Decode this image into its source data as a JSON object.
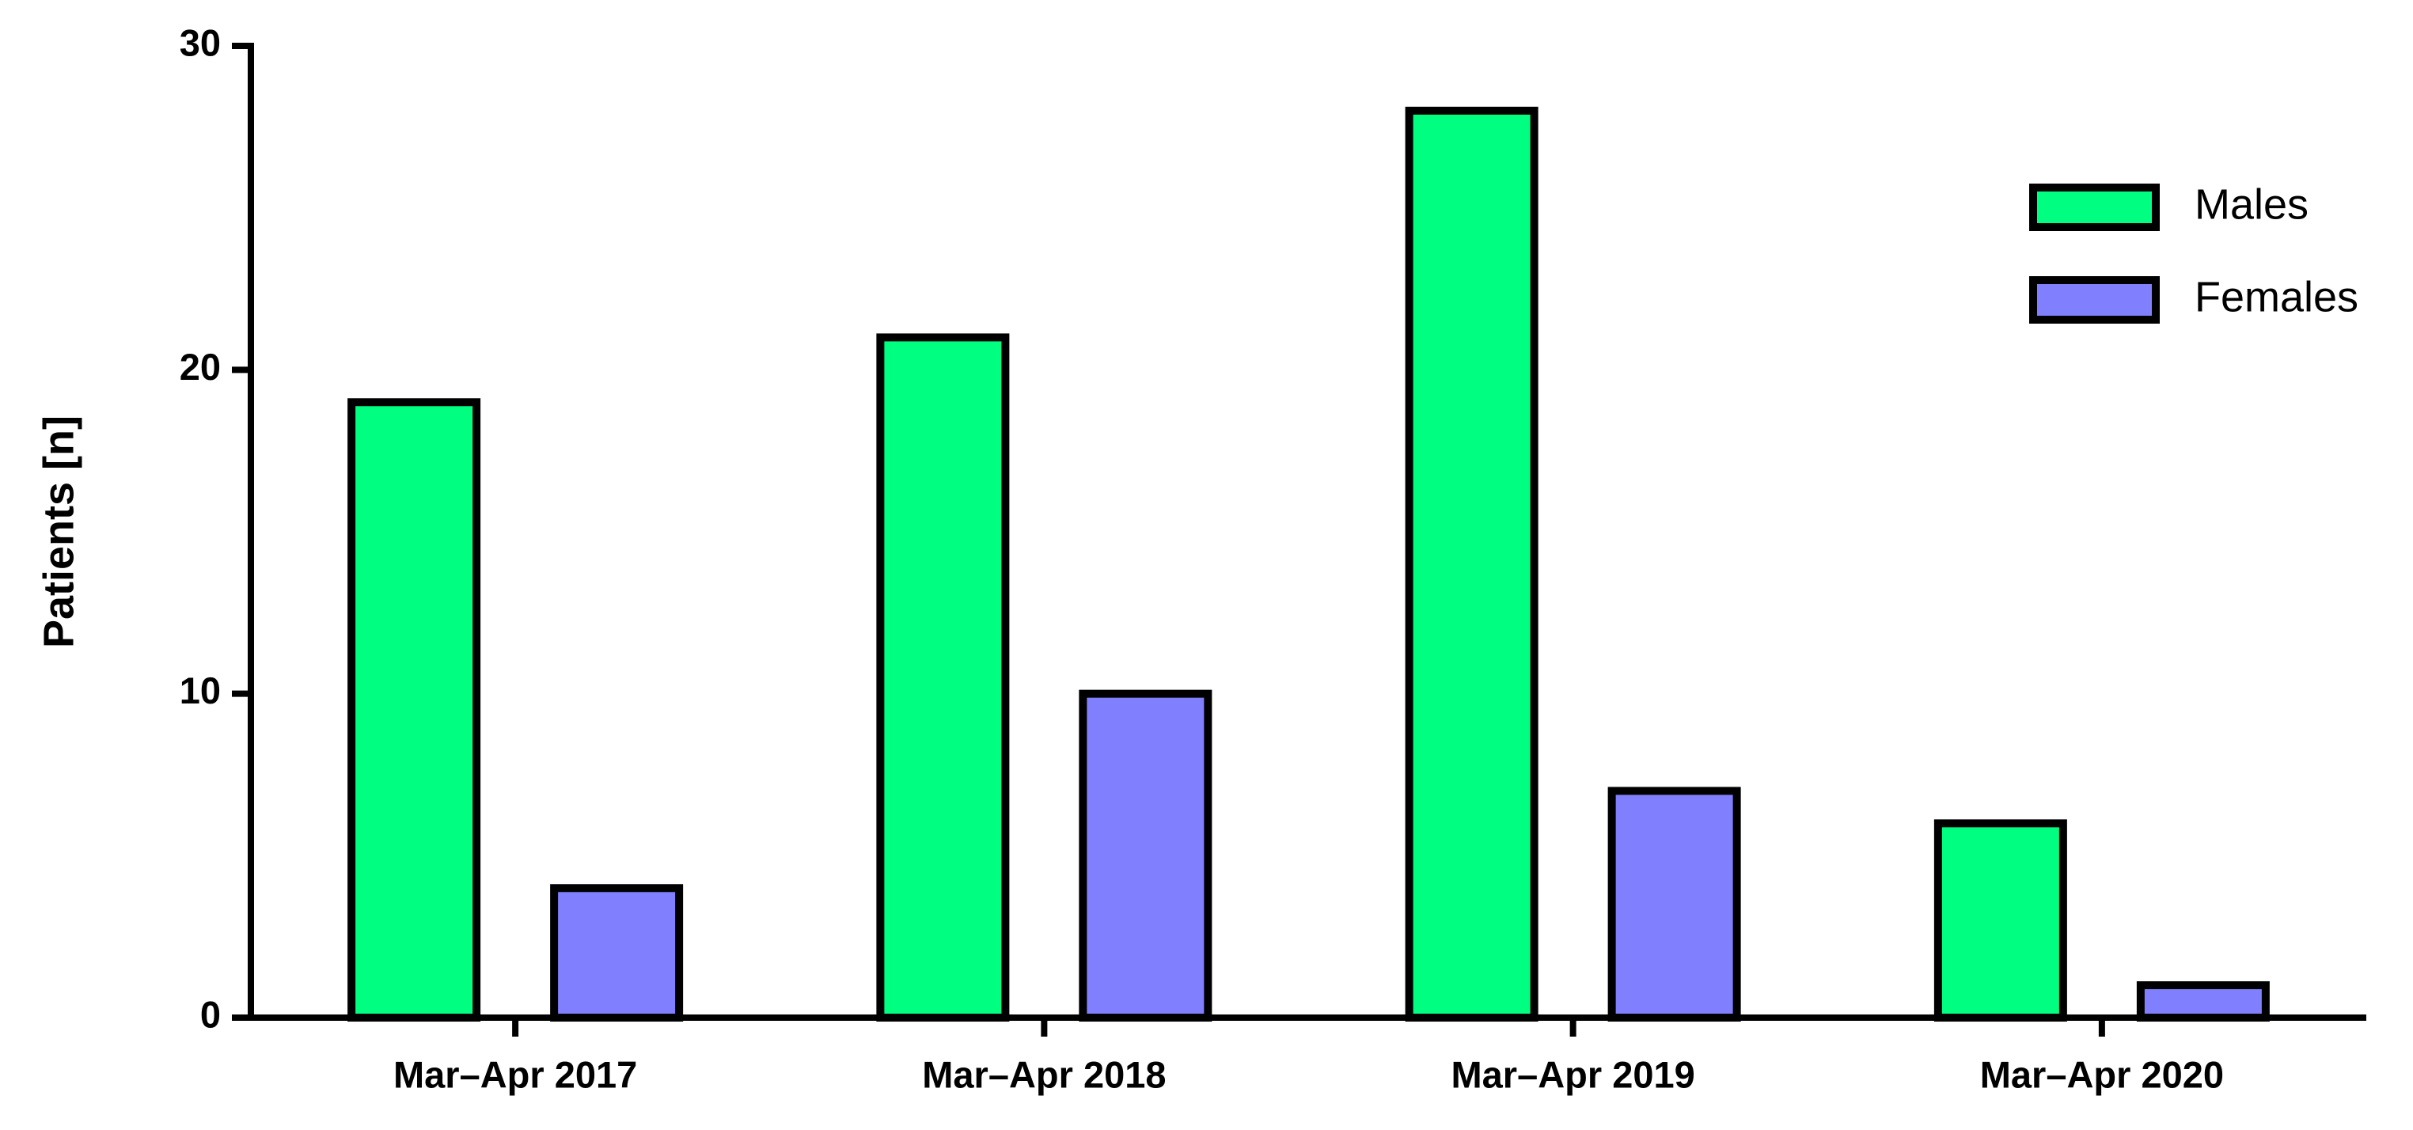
{
  "chart_data": {
    "type": "bar",
    "y_label": "Patients [n]",
    "categories": [
      "Mar–Apr 2017",
      "Mar–Apr 2018",
      "Mar–Apr 2019",
      "Mar–Apr 2020"
    ],
    "series": [
      {
        "name": "Males",
        "color": "#00ff80",
        "values": [
          19,
          21,
          28,
          6
        ]
      },
      {
        "name": "Females",
        "color": "#8080ff",
        "values": [
          4,
          10,
          7,
          1
        ]
      }
    ],
    "ylim": [
      0,
      30
    ],
    "yticks": [
      0,
      10,
      20,
      30
    ],
    "legend": "upper right"
  }
}
